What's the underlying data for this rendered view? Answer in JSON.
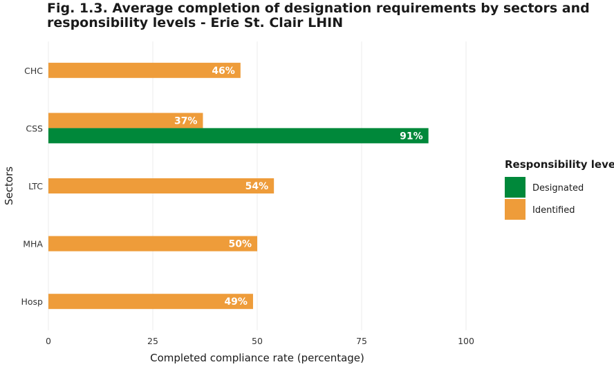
{
  "chart_data": {
    "type": "bar",
    "orientation": "horizontal",
    "title": "Fig. 1.3. Average completion of designation requirements by sectors and responsibility levels - Erie St. Clair LHIN",
    "xlabel": "Completed compliance rate (percentage)",
    "ylabel": "Sectors",
    "xlim": [
      0,
      100
    ],
    "xticks": [
      "0",
      "25",
      "50",
      "75",
      "100"
    ],
    "categories": [
      "CHC",
      "CSS",
      "LTC",
      "MHA",
      "Hosp"
    ],
    "series": [
      {
        "name": "Designated",
        "color": "#00883a",
        "values": [
          null,
          91,
          null,
          null,
          null
        ],
        "labels": [
          "",
          "91%",
          "",
          "",
          ""
        ]
      },
      {
        "name": "Identified",
        "color": "#ee9c3a",
        "values": [
          46,
          37,
          54,
          50,
          49
        ],
        "labels": [
          "46%",
          "37%",
          "54%",
          "50%",
          "49%"
        ]
      }
    ],
    "legend": {
      "title": "Responsibility level",
      "position": "right",
      "items": [
        "Designated",
        "Identified"
      ]
    },
    "grid": true
  }
}
